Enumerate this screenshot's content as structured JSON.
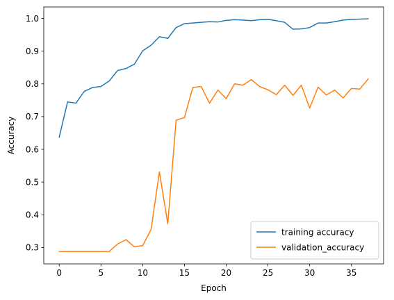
{
  "chart_data": {
    "type": "line",
    "title": "",
    "xlabel": "Epoch",
    "ylabel": "Accuracy",
    "xlim": [
      -1.85,
      38.85
    ],
    "ylim": [
      0.25,
      1.035
    ],
    "xticks": [
      0,
      5,
      10,
      15,
      20,
      25,
      30,
      35
    ],
    "yticks": [
      0.3,
      0.4,
      0.5,
      0.6,
      0.7,
      0.8,
      0.9,
      1.0
    ],
    "ytick_labels": [
      "0.3",
      "0.4",
      "0.5",
      "0.6",
      "0.7",
      "0.8",
      "0.9",
      "1.0"
    ],
    "grid": false,
    "legend_position": "bottom-right",
    "x": [
      0,
      1,
      2,
      3,
      4,
      5,
      6,
      7,
      8,
      9,
      10,
      11,
      12,
      13,
      14,
      15,
      16,
      17,
      18,
      19,
      20,
      21,
      22,
      23,
      24,
      25,
      26,
      27,
      28,
      29,
      30,
      31,
      32,
      33,
      34,
      35,
      36,
      37
    ],
    "series": [
      {
        "name": "training accuracy",
        "color": "#1f77b4",
        "values": [
          0.637,
          0.745,
          0.741,
          0.777,
          0.789,
          0.792,
          0.809,
          0.841,
          0.847,
          0.86,
          0.901,
          0.918,
          0.944,
          0.939,
          0.972,
          0.984,
          0.986,
          0.988,
          0.99,
          0.989,
          0.994,
          0.996,
          0.995,
          0.993,
          0.996,
          0.997,
          0.993,
          0.988,
          0.967,
          0.968,
          0.972,
          0.986,
          0.986,
          0.99,
          0.995,
          0.997,
          0.998,
          0.999
        ]
      },
      {
        "name": "validation_accuracy",
        "color": "#ff7f0e",
        "values": [
          0.288,
          0.288,
          0.288,
          0.288,
          0.288,
          0.288,
          0.288,
          0.311,
          0.324,
          0.302,
          0.306,
          0.355,
          0.531,
          0.373,
          0.689,
          0.697,
          0.789,
          0.792,
          0.741,
          0.781,
          0.755,
          0.8,
          0.796,
          0.813,
          0.792,
          0.782,
          0.767,
          0.796,
          0.765,
          0.796,
          0.726,
          0.79,
          0.766,
          0.781,
          0.757,
          0.786,
          0.784,
          0.815
        ]
      }
    ]
  }
}
